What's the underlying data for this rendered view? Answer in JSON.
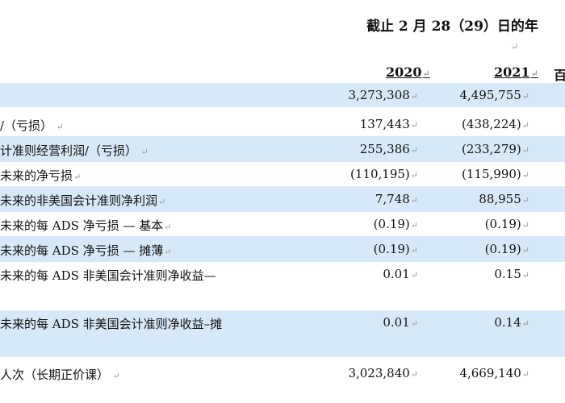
{
  "header": {
    "period_heading": "截止 2 月 28（29）日的年",
    "year_2020": "2020",
    "year_2021": "2021",
    "third_col_partial": "百"
  },
  "rows": [
    {
      "label": "",
      "v2020": "3,273,308",
      "v2021": "4,495,755"
    },
    {
      "label": "/（亏损）",
      "v2020": "137,443",
      "v2021": "(438,224)"
    },
    {
      "label": "计准则经营利润/（亏损）",
      "v2020": "255,386",
      "v2021": "(233,279)"
    },
    {
      "label": "未来的净亏损",
      "v2020": "(110,195)",
      "v2021": "(115,990)"
    },
    {
      "label": "未来的非美国会计准则净利润",
      "v2020": "7,748",
      "v2021": "88,955"
    },
    {
      "label": "未来的每 ADS 净亏损 — 基本",
      "v2020": "(0.19)",
      "v2021": "(0.19)"
    },
    {
      "label": "未来的每 ADS 净亏损 — 摊薄",
      "v2020": "(0.19)",
      "v2021": "(0.19)"
    },
    {
      "label": "未来的每 ADS 非美国会计准则净收益—",
      "v2020": "0.01",
      "v2021": "0.15"
    },
    {
      "label": "未来的每 ADS 非美国会计准则净收益–摊",
      "v2020": "0.01",
      "v2021": "0.14"
    },
    {
      "label": "人次（长期正价课）",
      "v2020": "3,023,840",
      "v2021": "4,669,140"
    }
  ]
}
